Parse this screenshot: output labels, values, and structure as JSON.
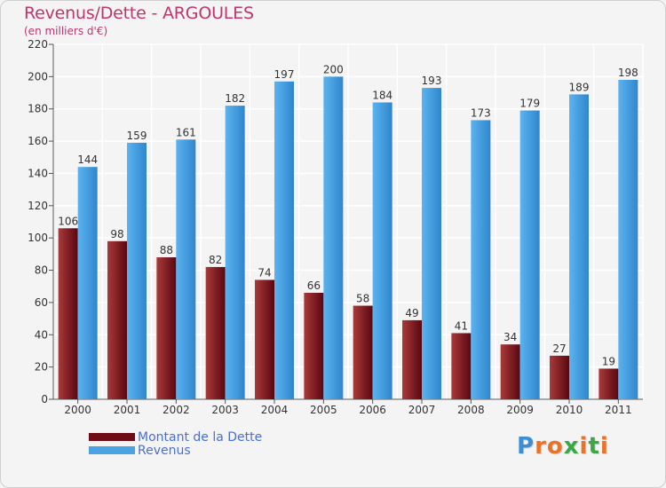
{
  "page": {
    "title": "Revenus/Dette - ARGOULES",
    "subtitle": "(en milliers d'€)"
  },
  "legend": {
    "items": [
      {
        "label": "Montant de la Dette",
        "color": "#6e0b14"
      },
      {
        "label": "Revenus",
        "color": "#4aa3e3"
      }
    ]
  },
  "logo": {
    "text": "Proxiti",
    "letter_colors": [
      "#3b8fd6",
      "#e8742c",
      "#e8742c",
      "#39a845",
      "#e8742c",
      "#39a845",
      "#e8742c"
    ]
  },
  "chart_data": {
    "type": "bar",
    "categories": [
      "2000",
      "2001",
      "2002",
      "2003",
      "2004",
      "2005",
      "2006",
      "2007",
      "2008",
      "2009",
      "2010",
      "2011"
    ],
    "series": [
      {
        "name": "Montant de la Dette",
        "values": [
          106,
          98,
          88,
          82,
          74,
          66,
          58,
          49,
          41,
          34,
          27,
          19
        ],
        "color": "#6e0b14",
        "color_light": "#a83a3a"
      },
      {
        "name": "Revenus",
        "values": [
          144,
          159,
          161,
          182,
          197,
          200,
          184,
          193,
          173,
          179,
          189,
          198
        ],
        "color": "#4aa3e3",
        "color_dark": "#2f7fc4"
      }
    ],
    "ylim": [
      0,
      220
    ],
    "yticks": [
      0,
      20,
      40,
      60,
      80,
      100,
      120,
      140,
      160,
      180,
      200,
      220
    ],
    "grid": true,
    "legend_position": "bottom-left"
  }
}
